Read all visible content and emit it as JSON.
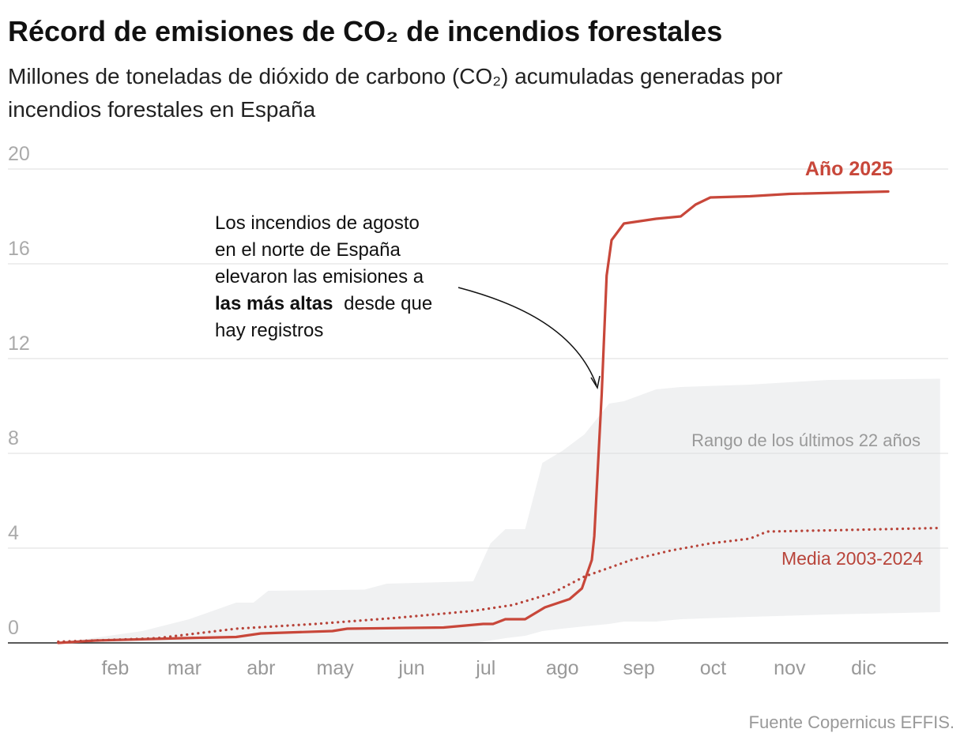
{
  "chart_data": {
    "type": "line",
    "title": "Récord de emisiones de CO₂ de incendios forestales",
    "subtitle_lines": [
      "Millones de toneladas de dióxido de carbono (CO₂) acumuladas generadas por",
      "incendios forestales en España"
    ],
    "xlim": [
      1,
      366
    ],
    "xticks": [
      {
        "value": 32,
        "label": "feb"
      },
      {
        "value": 60,
        "label": "mar"
      },
      {
        "value": 91,
        "label": "abr"
      },
      {
        "value": 121,
        "label": "may"
      },
      {
        "value": 152,
        "label": "jun"
      },
      {
        "value": 182,
        "label": "jul"
      },
      {
        "value": 213,
        "label": "ago"
      },
      {
        "value": 244,
        "label": "sep"
      },
      {
        "value": 274,
        "label": "oct"
      },
      {
        "value": 305,
        "label": "nov"
      },
      {
        "value": 335,
        "label": "dic"
      }
    ],
    "ylim": [
      0,
      20
    ],
    "yticks": [
      0,
      4,
      8,
      12,
      16,
      20
    ],
    "grid": true,
    "band": {
      "name": "Rango de los últimos 22 años",
      "color": "#f0f1f2",
      "x": [
        7,
        41,
        60,
        79,
        86,
        92,
        131,
        140,
        175,
        182,
        188,
        196,
        203,
        211,
        220,
        230,
        236,
        249,
        259,
        287,
        319,
        364
      ],
      "high": [
        0,
        0.5,
        1.0,
        1.7,
        1.7,
        2.2,
        2.25,
        2.5,
        2.6,
        4.2,
        4.8,
        4.8,
        7.6,
        8.1,
        8.8,
        10.1,
        10.2,
        10.7,
        10.8,
        10.9,
        11.1,
        11.15
      ],
      "low": [
        0,
        0,
        0,
        0,
        0,
        0,
        0,
        0,
        0,
        0.1,
        0.2,
        0.3,
        0.5,
        0.6,
        0.7,
        0.8,
        0.9,
        0.9,
        1.0,
        1.1,
        1.2,
        1.3
      ]
    },
    "series": [
      {
        "name": "Año 2025",
        "color": "#c8473a",
        "style": "solid",
        "x": [
          7,
          22,
          57,
          79,
          89,
          118,
          124,
          163,
          179,
          183,
          188,
          196,
          204,
          214,
          219,
          223,
          224,
          227,
          229,
          231,
          236,
          249,
          259,
          265,
          271,
          287,
          303,
          323,
          343
        ],
        "values": [
          0,
          0.1,
          0.2,
          0.25,
          0.4,
          0.5,
          0.6,
          0.65,
          0.8,
          0.8,
          1.0,
          1.0,
          1.5,
          1.85,
          2.3,
          3.5,
          4.5,
          10.5,
          15.5,
          17.0,
          17.7,
          17.9,
          18.0,
          18.5,
          18.8,
          18.85,
          18.95,
          19.0,
          19.05
        ]
      },
      {
        "name": "Media 2003-2024",
        "color": "#b8443a",
        "style": "dotted",
        "x": [
          7,
          47,
          79,
          111,
          143,
          175,
          191,
          207,
          220,
          239,
          255,
          271,
          287,
          294,
          319,
          364
        ],
        "values": [
          0.05,
          0.2,
          0.6,
          0.8,
          1.05,
          1.35,
          1.6,
          2.1,
          2.8,
          3.5,
          3.9,
          4.2,
          4.4,
          4.7,
          4.75,
          4.85
        ]
      }
    ],
    "annotation": {
      "lines": [
        "Los incendios de agosto",
        "en el norte de España",
        "elevaron las emisiones a"
      ],
      "bold": "las más altas",
      "after_bold": "desde que",
      "last": "hay registros"
    },
    "source": "Fuente Copernicus EFFIS."
  }
}
